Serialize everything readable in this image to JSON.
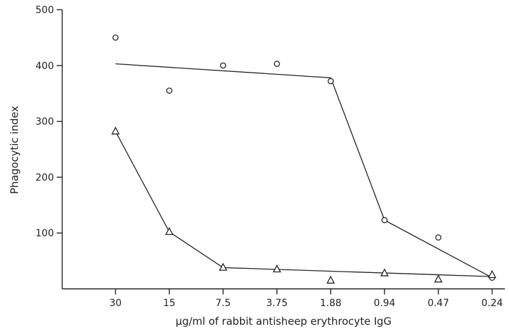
{
  "chart_data": {
    "type": "scatter",
    "xlabel": "µg/ml of rabbit antisheep erythrocyte IgG",
    "ylabel": "Phagocytic index",
    "categories": [
      "30",
      "15",
      "7.5",
      "3.75",
      "1.88",
      "0.94",
      "0.47",
      "0.24"
    ],
    "ylim": [
      0,
      500
    ],
    "yticks": [
      100,
      200,
      300,
      400,
      500
    ],
    "grid": false,
    "series": [
      {
        "marker": "circle",
        "points": [
          {
            "x": "30",
            "y": 450
          },
          {
            "x": "15",
            "y": 355
          },
          {
            "x": "7.5",
            "y": 400
          },
          {
            "x": "3.75",
            "y": 403
          },
          {
            "x": "1.88",
            "y": 372
          },
          {
            "x": "0.94",
            "y": 123
          },
          {
            "x": "0.47",
            "y": 92
          },
          {
            "x": "0.24",
            "y": 20
          }
        ],
        "fit_line": [
          {
            "x": "30",
            "y": 403
          },
          {
            "x": "1.88",
            "y": 378
          },
          {
            "x": "0.94",
            "y": 123
          },
          {
            "x": "0.24",
            "y": 20
          }
        ]
      },
      {
        "marker": "triangle",
        "points": [
          {
            "x": "30",
            "y": 282
          },
          {
            "x": "15",
            "y": 102
          },
          {
            "x": "7.5",
            "y": 38
          },
          {
            "x": "3.75",
            "y": 35
          },
          {
            "x": "1.88",
            "y": 15
          },
          {
            "x": "0.94",
            "y": 28
          },
          {
            "x": "0.47",
            "y": 17
          },
          {
            "x": "0.24",
            "y": 25
          }
        ],
        "fit_line": [
          {
            "x": "30",
            "y": 282
          },
          {
            "x": "15",
            "y": 102
          },
          {
            "x": "7.5",
            "y": 38
          },
          {
            "x": "0.24",
            "y": 22
          }
        ]
      }
    ]
  }
}
